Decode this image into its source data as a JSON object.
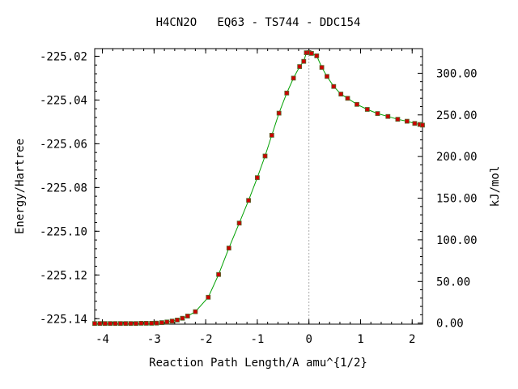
{
  "chart_data": {
    "type": "line",
    "title": "H4CN2O   EQ63 - TS744 - DDC154",
    "xlabel": "Reaction Path Length/A amu^{1/2}",
    "ylabel": "Energy/Hartree",
    "y2label": "kJ/mol",
    "xlim": [
      -4.15,
      2.2
    ],
    "ylim": [
      -225.1425,
      -225.0165
    ],
    "y2lim": [
      -1.3,
      329.6
    ],
    "x_ticks": [
      -4,
      -3,
      -2,
      -1,
      0,
      1,
      2
    ],
    "y_ticks": [
      -225.02,
      -225.04,
      -225.06,
      -225.08,
      -225.1,
      -225.12,
      -225.14
    ],
    "y_tick_labels": [
      "-225.02",
      "-225.04",
      "-225.06",
      "-225.08",
      "-225.10",
      "-225.12",
      "-225.14"
    ],
    "y2_ticks": [
      300,
      250,
      200,
      150,
      100,
      50,
      0
    ],
    "y2_tick_labels": [
      "300.00",
      "250.00",
      "200.00",
      "150.00",
      "100.00",
      "50.00",
      "0.00"
    ],
    "ts_marker_x": 0.0,
    "line_color": "#00a000",
    "marker_color": "#cc0000",
    "marker_edge_color": "#556b2f",
    "ts_line_color": "#aaaaaa",
    "series": [
      {
        "x": [
          -4.15,
          -4.05,
          -3.95,
          -3.85,
          -3.75,
          -3.65,
          -3.55,
          -3.45,
          -3.35,
          -3.25,
          -3.15,
          -3.05,
          -2.95,
          -2.85,
          -2.75,
          -2.65,
          -2.55,
          -2.45,
          -2.35,
          -2.2,
          -1.95,
          -1.75,
          -1.55,
          -1.35,
          -1.17,
          -1.0,
          -0.85,
          -0.72,
          -0.58,
          -0.43,
          -0.3,
          -0.18,
          -0.1,
          -0.05,
          0.0,
          0.05,
          0.15,
          0.25,
          0.35,
          0.48,
          0.62,
          0.75,
          0.93,
          1.13,
          1.33,
          1.53,
          1.72,
          1.9,
          2.05,
          2.15,
          2.2
        ],
        "y": [
          -225.1422,
          -225.1422,
          -225.1422,
          -225.1422,
          -225.1422,
          -225.1422,
          -225.1422,
          -225.1422,
          -225.1422,
          -225.1421,
          -225.1421,
          -225.1421,
          -225.142,
          -225.1418,
          -225.1415,
          -225.1411,
          -225.1406,
          -225.1398,
          -225.1388,
          -225.1368,
          -225.1302,
          -225.1198,
          -225.1077,
          -225.0963,
          -225.0859,
          -225.0755,
          -225.0656,
          -225.0561,
          -225.046,
          -225.0368,
          -225.03,
          -225.0247,
          -225.0223,
          -225.0184,
          -225.0183,
          -225.0187,
          -225.0198,
          -225.0251,
          -225.0292,
          -225.0338,
          -225.0373,
          -225.0392,
          -225.042,
          -225.0443,
          -225.0462,
          -225.0475,
          -225.0488,
          -225.0497,
          -225.0507,
          -225.0512,
          -225.0515
        ]
      }
    ]
  }
}
